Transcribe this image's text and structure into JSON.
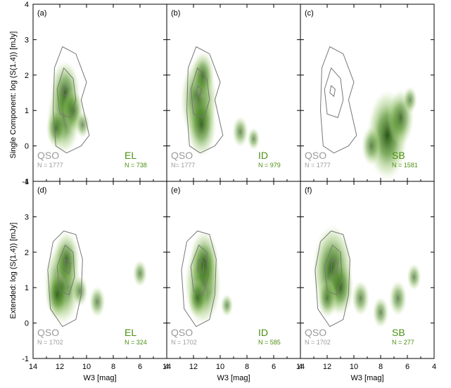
{
  "figure": {
    "ylabel_top": "Single Component: log (S(1.4)) [mJy]",
    "ylabel_bottom": "Extended: log (S(1.4)) [mJy]"
  },
  "chart_data": [
    {
      "type": "heatmap",
      "panel": "(a)",
      "xlabel": "",
      "ylabel": "Single Component: log (S(1.4)) [mJy]",
      "xlim": [
        14,
        4
      ],
      "ylim": [
        -1,
        4
      ],
      "qso_label": "QSO",
      "qso_n": "N = 1777",
      "class_label": "EL",
      "class_n": "N = 738",
      "density_peaks": [
        {
          "x": 11.7,
          "y": 0.8,
          "w": 0.8
        },
        {
          "x": 11.6,
          "y": 1.5,
          "w": 0.7
        },
        {
          "x": 11.0,
          "y": 1.0,
          "w": 0.45
        },
        {
          "x": 12.3,
          "y": 0.5,
          "w": 0.4
        },
        {
          "x": 10.3,
          "y": 0.6,
          "w": 0.25
        }
      ]
    },
    {
      "type": "heatmap",
      "panel": "(b)",
      "xlabel": "",
      "ylabel": "",
      "xlim": [
        14,
        4
      ],
      "ylim": [
        -1,
        4
      ],
      "qso_label": "QSO",
      "qso_n": "N= 1777",
      "class_label": "ID",
      "class_n": "N = 979",
      "density_peaks": [
        {
          "x": 11.6,
          "y": 1.3,
          "w": 0.9
        },
        {
          "x": 11.4,
          "y": 0.6,
          "w": 0.7
        },
        {
          "x": 11.3,
          "y": 2.0,
          "w": 0.5
        },
        {
          "x": 8.5,
          "y": 0.4,
          "w": 0.3
        },
        {
          "x": 7.5,
          "y": 0.2,
          "w": 0.2
        }
      ]
    },
    {
      "type": "heatmap",
      "panel": "(c)",
      "xlabel": "",
      "ylabel": "",
      "xlim": [
        14,
        4
      ],
      "ylim": [
        -1,
        4
      ],
      "qso_label": "QSO",
      "qso_n": "N = 1777",
      "class_label": "SB",
      "class_n": "N = 1581",
      "density_peaks": [
        {
          "x": 7.5,
          "y": 0.3,
          "w": 1.0
        },
        {
          "x": 6.5,
          "y": 0.8,
          "w": 0.6
        },
        {
          "x": 8.7,
          "y": 0.0,
          "w": 0.4
        },
        {
          "x": 5.8,
          "y": 1.3,
          "w": 0.25
        }
      ]
    },
    {
      "type": "heatmap",
      "panel": "(d)",
      "xlabel": "W3 [mag]",
      "ylabel": "Extended: log (S(1.4)) [mJy]",
      "xlim": [
        14,
        4
      ],
      "ylim": [
        -1,
        4
      ],
      "qso_label": "QSO",
      "qso_n": "N = 1702",
      "class_label": "EL",
      "class_n": "N = 324",
      "density_peaks": [
        {
          "x": 11.8,
          "y": 1.1,
          "w": 0.9
        },
        {
          "x": 11.5,
          "y": 1.8,
          "w": 0.6
        },
        {
          "x": 12.2,
          "y": 0.8,
          "w": 0.5
        },
        {
          "x": 10.5,
          "y": 0.9,
          "w": 0.3
        },
        {
          "x": 9.2,
          "y": 0.6,
          "w": 0.3
        },
        {
          "x": 6.0,
          "y": 1.4,
          "w": 0.25
        }
      ]
    },
    {
      "type": "heatmap",
      "panel": "(e)",
      "xlabel": "W3 [mag]",
      "ylabel": "",
      "xlim": [
        14,
        4
      ],
      "ylim": [
        -1,
        4
      ],
      "qso_label": "QSO",
      "qso_n": "N = 1702",
      "class_label": "ID",
      "class_n": "N = 585",
      "density_peaks": [
        {
          "x": 11.3,
          "y": 1.1,
          "w": 0.9
        },
        {
          "x": 11.2,
          "y": 1.7,
          "w": 0.7
        },
        {
          "x": 11.7,
          "y": 0.7,
          "w": 0.4
        },
        {
          "x": 9.5,
          "y": 0.5,
          "w": 0.2
        }
      ]
    },
    {
      "type": "heatmap",
      "panel": "(f)",
      "xlabel": "W3 [mag]",
      "ylabel": "",
      "xlim": [
        14,
        4
      ],
      "ylim": [
        -1,
        4
      ],
      "qso_label": "QSO",
      "qso_n": "N = 1702",
      "class_label": "SB",
      "class_n": "N = 277",
      "density_peaks": [
        {
          "x": 11.6,
          "y": 1.5,
          "w": 1.0
        },
        {
          "x": 11.0,
          "y": 1.0,
          "w": 0.6
        },
        {
          "x": 12.0,
          "y": 0.7,
          "w": 0.4
        },
        {
          "x": 9.5,
          "y": 0.7,
          "w": 0.35
        },
        {
          "x": 8.0,
          "y": 0.3,
          "w": 0.3
        },
        {
          "x": 6.7,
          "y": 0.7,
          "w": 0.35
        },
        {
          "x": 5.5,
          "y": 1.3,
          "w": 0.25
        }
      ]
    }
  ],
  "qso_contours": {
    "top": [
      [
        [
          11.8,
          2.8
        ],
        [
          10.8,
          2.6
        ],
        [
          10.0,
          1.8
        ],
        [
          10.4,
          1.3
        ],
        [
          9.8,
          0.3
        ],
        [
          10.4,
          0.0
        ],
        [
          11.5,
          -0.2
        ],
        [
          12.3,
          0.0
        ],
        [
          12.5,
          1.0
        ],
        [
          12.4,
          2.2
        ]
      ],
      [
        [
          11.7,
          2.2
        ],
        [
          11.0,
          1.9
        ],
        [
          10.8,
          1.3
        ],
        [
          11.2,
          0.8
        ],
        [
          12.0,
          0.9
        ],
        [
          12.2,
          1.6
        ]
      ],
      [
        [
          11.7,
          1.7
        ],
        [
          11.4,
          1.6
        ],
        [
          11.5,
          1.4
        ],
        [
          11.8,
          1.5
        ]
      ]
    ],
    "bottom": [
      [
        [
          11.7,
          2.6
        ],
        [
          10.8,
          2.5
        ],
        [
          10.3,
          1.8
        ],
        [
          10.4,
          0.8
        ],
        [
          10.8,
          0.1
        ],
        [
          11.8,
          -0.1
        ],
        [
          12.7,
          0.4
        ],
        [
          12.9,
          1.5
        ],
        [
          12.5,
          2.3
        ]
      ],
      [
        [
          11.6,
          2.2
        ],
        [
          11.0,
          2.0
        ],
        [
          10.9,
          1.3
        ],
        [
          11.3,
          0.8
        ],
        [
          12.0,
          0.9
        ],
        [
          12.2,
          1.6
        ]
      ],
      [
        [
          11.6,
          1.8
        ],
        [
          11.2,
          1.7
        ],
        [
          11.3,
          1.4
        ],
        [
          11.7,
          1.5
        ]
      ]
    ]
  }
}
